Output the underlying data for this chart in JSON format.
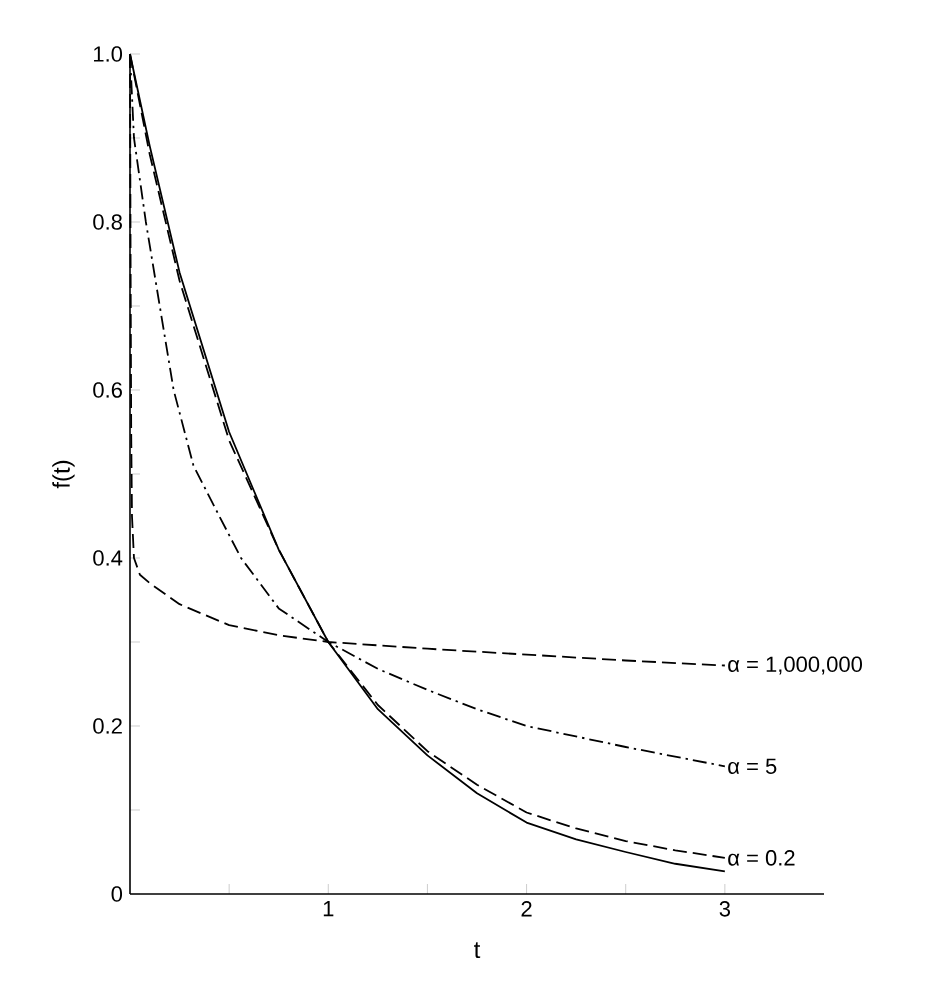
{
  "chart_data": {
    "type": "line",
    "xlabel": "t",
    "ylabel": "f(t)",
    "xlim": [
      0,
      3.5
    ],
    "ylim": [
      0,
      1.0
    ],
    "xticks": [
      {
        "value": 0.5,
        "label": null
      },
      1,
      {
        "value": 1.5,
        "label": null
      },
      2,
      {
        "value": 2.5,
        "label": null
      },
      3
    ],
    "yticks": [
      0,
      {
        "value": 0.1,
        "label": null
      },
      0.2,
      {
        "value": 0.3,
        "label": null
      },
      0.4,
      {
        "value": 0.5,
        "label": null
      },
      0.6,
      {
        "value": 0.7,
        "label": null
      },
      0.8,
      {
        "value": 0.9,
        "label": null
      },
      {
        "value": 1.0,
        "label": "1.0"
      }
    ],
    "grid": false,
    "legend": false,
    "marker": "none",
    "series": [
      {
        "color": "#000000",
        "line_style": "solid",
        "x": [
          0,
          0.1,
          0.25,
          0.5,
          0.75,
          1,
          1.25,
          1.5,
          1.75,
          2,
          2.25,
          2.5,
          2.75,
          3
        ],
        "values": [
          1.0,
          0.89,
          0.74,
          0.55,
          0.41,
          0.3,
          0.22,
          0.165,
          0.12,
          0.085,
          0.065,
          0.05,
          0.036,
          0.027
        ]
      },
      {
        "name": "α = 0.2",
        "color": "#000000",
        "line_style": "dashed",
        "x": [
          0,
          0.1,
          0.25,
          0.5,
          0.75,
          1,
          1.25,
          1.5,
          1.75,
          2,
          2.25,
          2.5,
          2.75,
          3
        ],
        "values": [
          1.0,
          0.88,
          0.73,
          0.54,
          0.41,
          0.3,
          0.225,
          0.17,
          0.13,
          0.097,
          0.078,
          0.063,
          0.052,
          0.043
        ]
      },
      {
        "name": "α = 5",
        "color": "#000000",
        "line_style": "dashdot",
        "x": [
          0,
          0.02,
          0.08,
          0.15,
          0.22,
          0.32,
          0.45,
          0.56,
          0.75,
          1,
          1.25,
          1.5,
          1.75,
          2,
          2.5,
          3
        ],
        "values": [
          1.0,
          0.9,
          0.8,
          0.7,
          0.6,
          0.51,
          0.45,
          0.4,
          0.34,
          0.3,
          0.268,
          0.243,
          0.22,
          0.2,
          0.175,
          0.152
        ]
      },
      {
        "name": "α = 1,000,000",
        "color": "#000000",
        "line_style": "dashed",
        "x": [
          0,
          0.003,
          0.006,
          0.01,
          0.02,
          0.05,
          0.1,
          0.25,
          0.5,
          0.75,
          1,
          1.5,
          2,
          2.5,
          3
        ],
        "values": [
          1.0,
          0.75,
          0.55,
          0.45,
          0.4,
          0.38,
          0.37,
          0.345,
          0.32,
          0.308,
          0.3,
          0.292,
          0.285,
          0.278,
          0.272
        ]
      }
    ]
  }
}
